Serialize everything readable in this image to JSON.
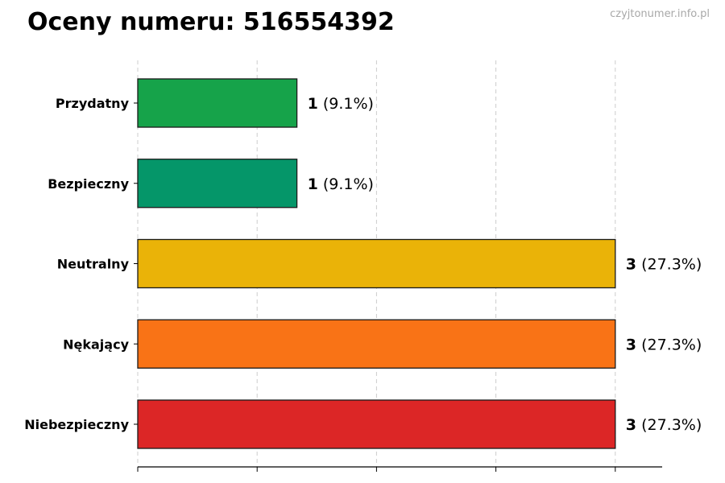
{
  "header": {
    "title": "Oceny numeru: 516554392",
    "watermark": "czyjtonumer.info.pl"
  },
  "chart_data": {
    "type": "bar",
    "orientation": "horizontal",
    "title": "Oceny numeru: 516554392",
    "xlabel": "",
    "ylabel": "",
    "xlim": [
      0,
      3.3
    ],
    "grid": "vertical-dashed",
    "categories": [
      "Przydatny",
      "Bezpieczny",
      "Neutralny",
      "Nękający",
      "Niebezpieczny"
    ],
    "values": [
      1,
      1,
      3,
      3,
      3
    ],
    "percent_labels": [
      "(9.1%)",
      "(9.1%)",
      "(27.3%)",
      "(27.3%)",
      "(27.3%)"
    ],
    "colors": [
      "#16a34a",
      "#059669",
      "#eab308",
      "#f97316",
      "#dc2626"
    ]
  }
}
